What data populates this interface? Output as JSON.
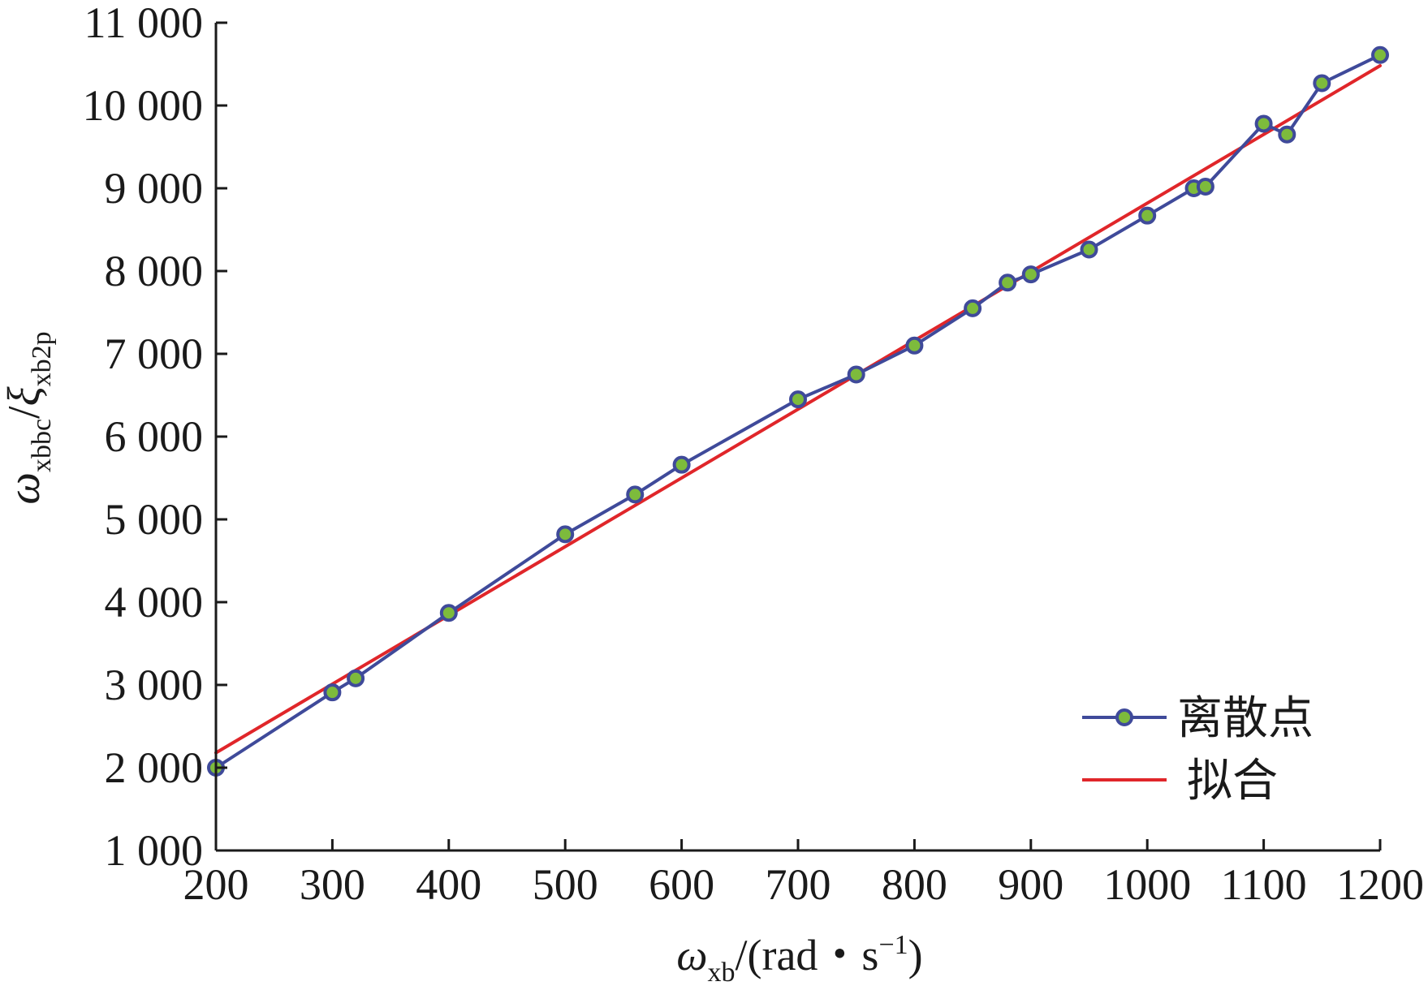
{
  "chart_data": {
    "type": "line",
    "title": "",
    "xlabel": {
      "symbol": "ω",
      "subscript": "xb",
      "unit_prefix": "/(rad・s",
      "unit_superscript": "−1",
      "unit_suffix": ")"
    },
    "ylabel": {
      "symbol1": "ω",
      "subscript1": "xbbc",
      "separator": "/",
      "symbol2": "ξ",
      "subscript2": "xb2p"
    },
    "xlim": [
      200,
      1200
    ],
    "ylim": [
      1000,
      11000
    ],
    "xticks": [
      200,
      300,
      400,
      500,
      600,
      700,
      800,
      900,
      1000,
      1100,
      1200
    ],
    "xtick_labels": [
      "200",
      "300",
      "400",
      "500",
      "600",
      "700",
      "800",
      "900",
      "1000",
      "1100",
      "1200"
    ],
    "yticks": [
      1000,
      2000,
      3000,
      4000,
      5000,
      6000,
      7000,
      8000,
      9000,
      10000,
      11000
    ],
    "ytick_labels": [
      "1 000",
      "2 000",
      "3 000",
      "4 000",
      "5 000",
      "6 000",
      "7 000",
      "8 000",
      "9 000",
      "10 000",
      "11 000"
    ],
    "grid": false,
    "legend_position": "bottom-right",
    "series": [
      {
        "name": "离散点",
        "style": "line-with-markers",
        "color": "#3f4a9a",
        "marker_color": "#7dbb3c",
        "x": [
          200,
          300,
          320,
          400,
          500,
          560,
          600,
          700,
          750,
          800,
          850,
          880,
          900,
          950,
          1000,
          1040,
          1050,
          1100,
          1120,
          1150,
          1200
        ],
        "y": [
          2000,
          2910,
          3080,
          3870,
          4820,
          5300,
          5660,
          6450,
          6750,
          7100,
          7550,
          7860,
          7960,
          8260,
          8670,
          9000,
          9020,
          9780,
          9650,
          10270,
          10610
        ]
      },
      {
        "name": "拟合",
        "style": "line",
        "color": "#e0262a",
        "x": [
          200,
          1200
        ],
        "y": [
          2180,
          10480
        ]
      }
    ]
  }
}
